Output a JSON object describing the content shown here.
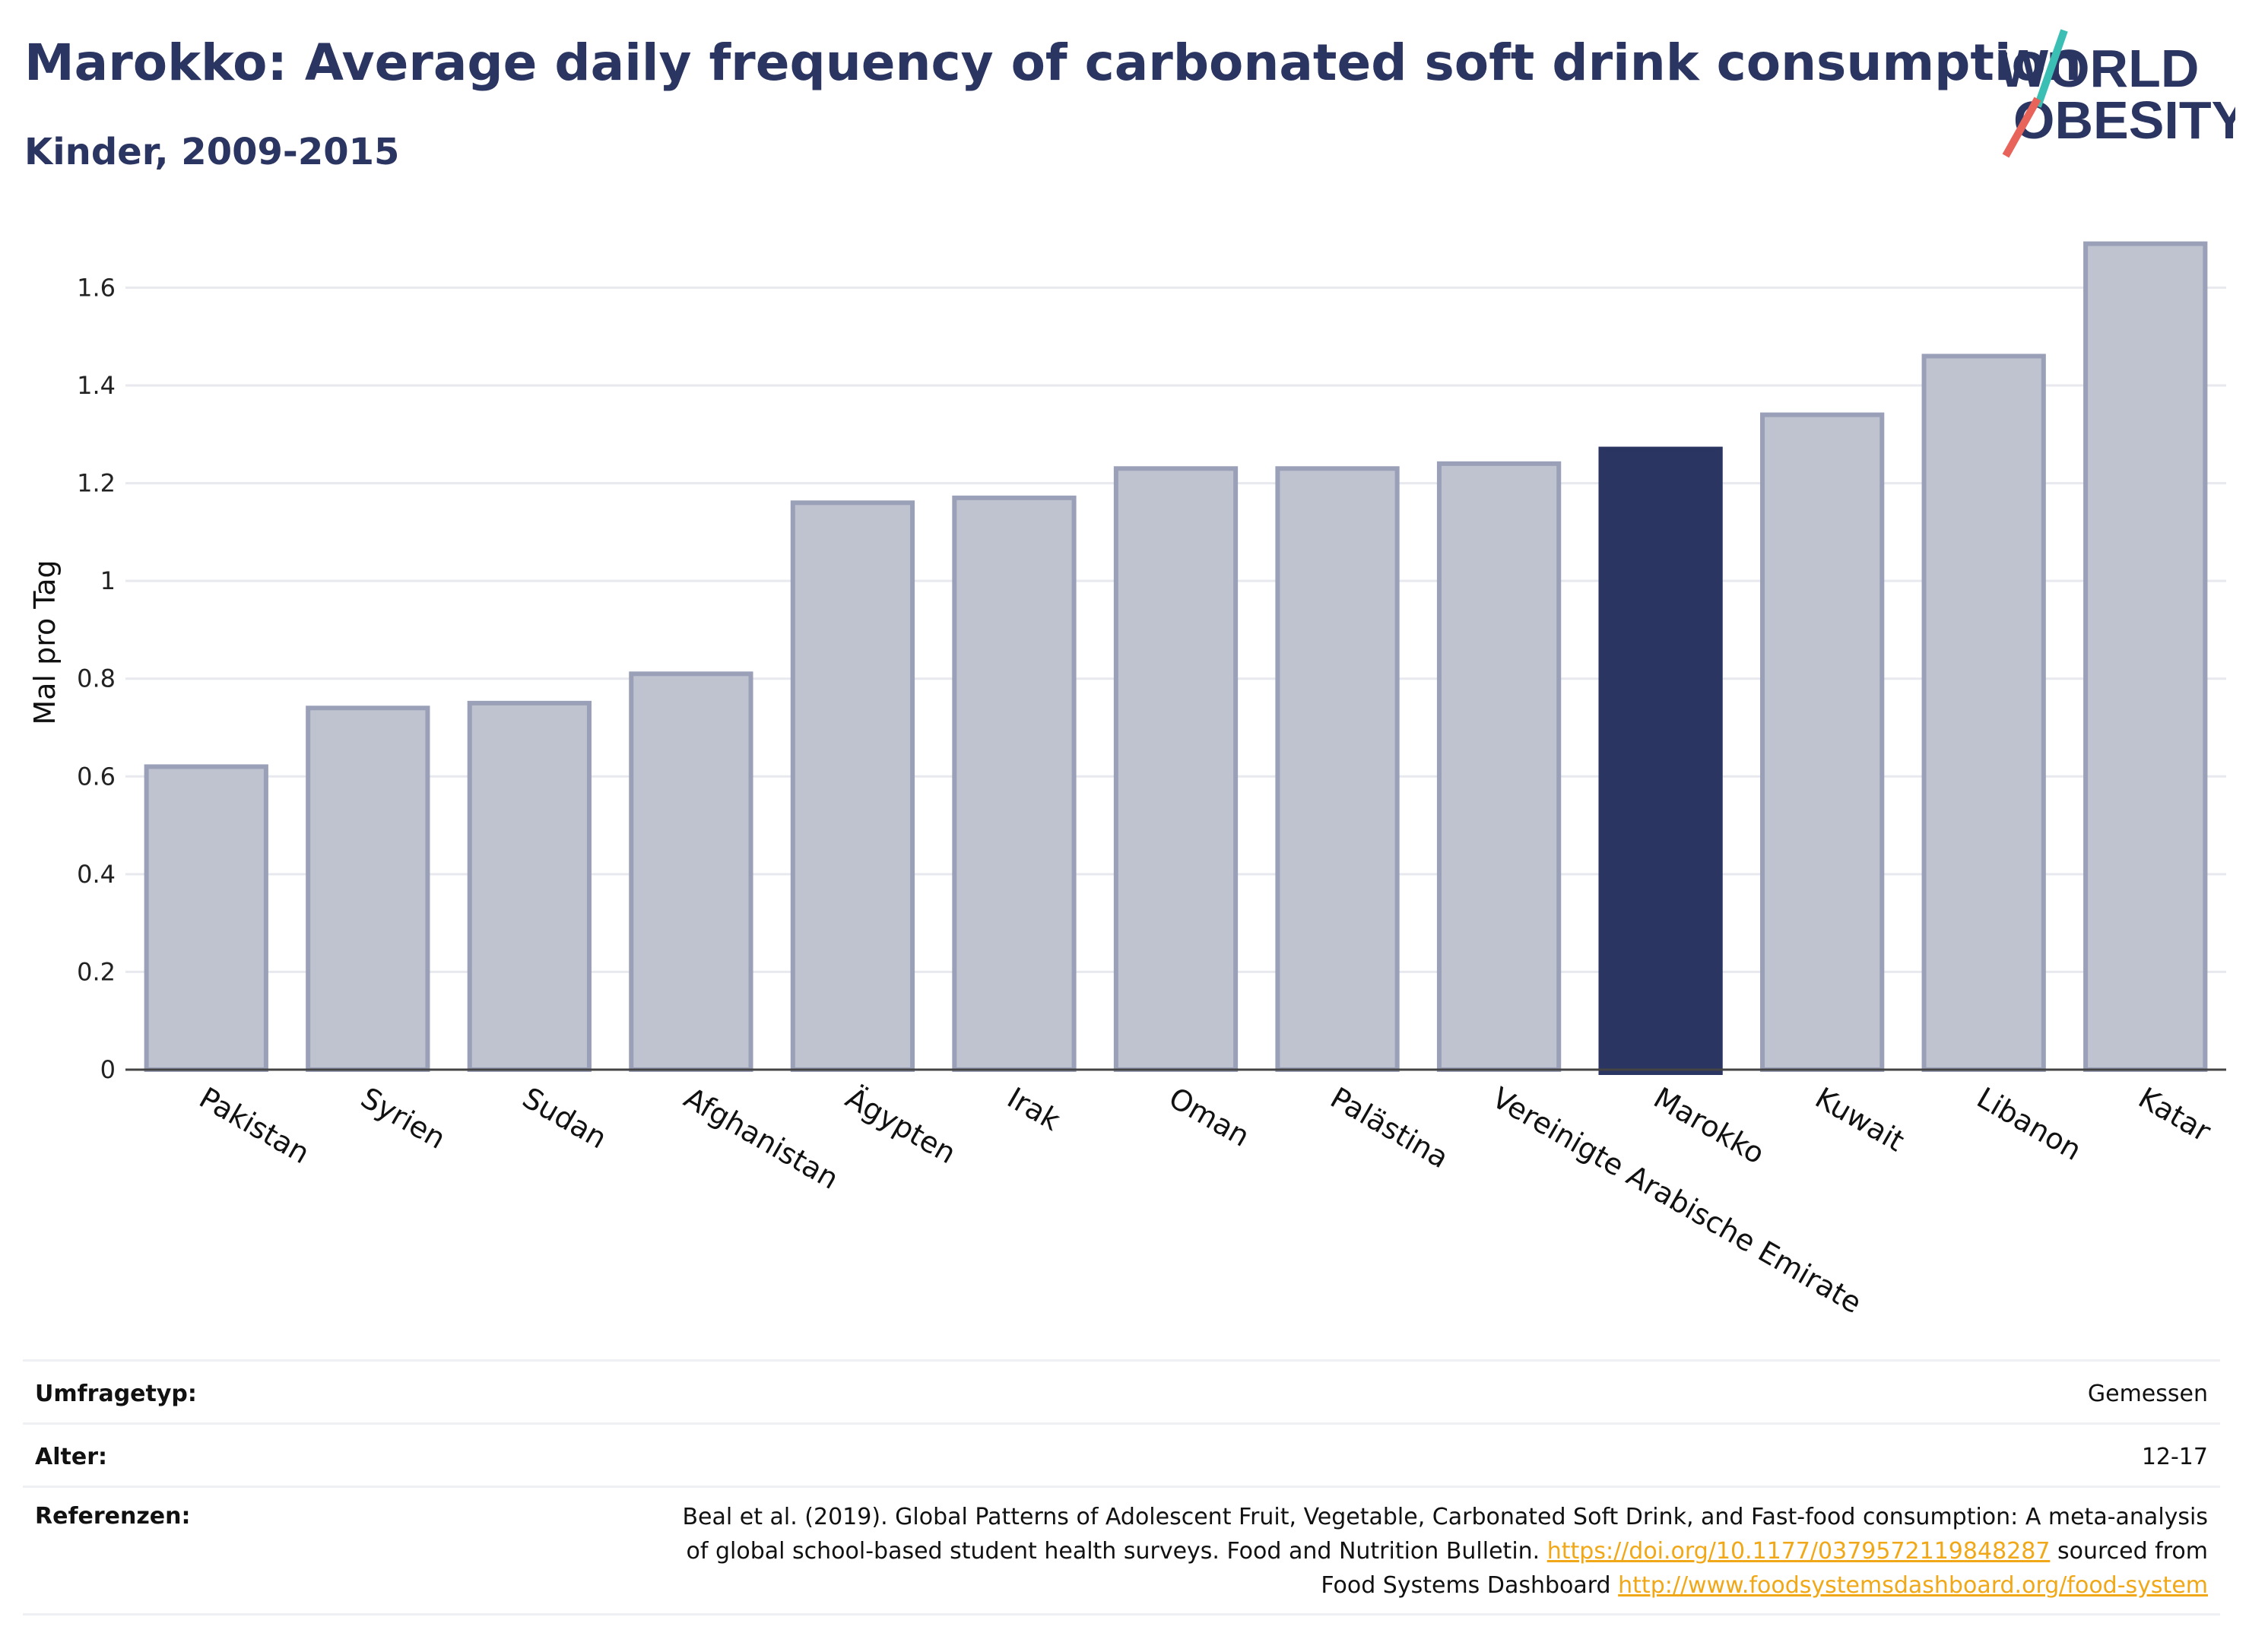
{
  "header": {
    "title": "Marokko: Average daily frequency of carbonated soft drink consumption",
    "subtitle": "Kinder, 2009-2015"
  },
  "logo": {
    "line1": "WORLD",
    "line2": "OBESITY",
    "accent_teal": "#3bbfb4",
    "accent_red": "#e8645a"
  },
  "colors": {
    "bar": "#bfc2cf",
    "bar_border": "#9aa0b7",
    "highlight": "#2b3561",
    "title": "#2b3561"
  },
  "chart_data": {
    "type": "bar",
    "title": "Marokko: Average daily frequency of carbonated soft drink consumption",
    "subtitle": "Kinder, 2009-2015",
    "xlabel": "",
    "ylabel": "Mal pro Tag",
    "ylim": [
      0,
      1.75
    ],
    "yticks": [
      0,
      0.2,
      0.4,
      0.6,
      0.8,
      1,
      1.2,
      1.4,
      1.6
    ],
    "ytick_labels": [
      "0",
      "0.2",
      "0.4",
      "0.6",
      "0.8",
      "1",
      "1.2",
      "1.4",
      "1.6"
    ],
    "grid": true,
    "categories": [
      "Pakistan",
      "Syrien",
      "Sudan",
      "Afghanistan",
      "Ägypten",
      "Irak",
      "Oman",
      "Palästina",
      "Vereinigte Arabische Emirate",
      "Marokko",
      "Kuwait",
      "Libanon",
      "Katar"
    ],
    "values": [
      0.62,
      0.74,
      0.75,
      0.81,
      1.16,
      1.17,
      1.23,
      1.23,
      1.24,
      1.27,
      1.34,
      1.46,
      1.69
    ],
    "highlight": "Marokko"
  },
  "info": {
    "survey_type_label": "Umfragetyp:",
    "survey_type_value": "Gemessen",
    "age_label": "Alter:",
    "age_value": "12-17",
    "references_label": "Referenzen:",
    "ref_line1": "Beal et al. (2019). Global Patterns of Adolescent Fruit, Vegetable, Carbonated Soft Drink, and Fast-food consumption: A meta-analysis",
    "ref_line2_text": "of global school-based student health surveys. Food and Nutrition Bulletin.",
    "ref_link1": "https://doi.org/10.1177/0379572119848287",
    "ref_line2_tail": "sourced from",
    "ref_line3_text": "Food Systems Dashboard",
    "ref_link2": "http://www.foodsystemsdashboard.org/food-system"
  }
}
